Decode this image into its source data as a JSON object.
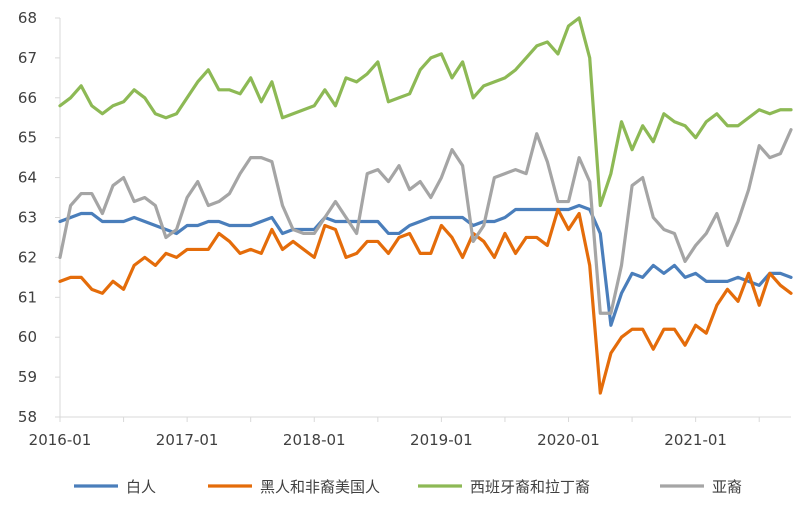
{
  "chart_data": {
    "type": "line",
    "title": "",
    "xlabel": "",
    "ylabel": "",
    "ylim": [
      58,
      68
    ],
    "yticks": [
      58,
      59,
      60,
      61,
      62,
      63,
      64,
      65,
      66,
      67,
      68
    ],
    "x_start": "2016-01",
    "x_count": 70,
    "xtick_labels": [
      {
        "label": "2016-01",
        "index": 0
      },
      {
        "label": "2017-01",
        "index": 12
      },
      {
        "label": "2018-01",
        "index": 24
      },
      {
        "label": "2019-01",
        "index": 36
      },
      {
        "label": "2020-01",
        "index": 48
      },
      {
        "label": "2021-01",
        "index": 60
      }
    ],
    "grid": false,
    "legend_position": "bottom",
    "series": [
      {
        "name": "白人",
        "color": "#4a7ebb",
        "values": [
          62.9,
          63.0,
          63.1,
          63.1,
          62.9,
          62.9,
          62.9,
          63.0,
          62.9,
          62.8,
          62.7,
          62.6,
          62.8,
          62.8,
          62.9,
          62.9,
          62.8,
          62.8,
          62.8,
          62.9,
          63.0,
          62.6,
          62.7,
          62.7,
          62.7,
          63.0,
          62.9,
          62.9,
          62.9,
          62.9,
          62.9,
          62.6,
          62.6,
          62.8,
          62.9,
          63.0,
          63.0,
          63.0,
          63.0,
          62.8,
          62.9,
          62.9,
          63.0,
          63.2,
          63.2,
          63.2,
          63.2,
          63.2,
          63.2,
          63.3,
          63.2,
          62.6,
          60.3,
          61.1,
          61.6,
          61.5,
          61.8,
          61.6,
          61.8,
          61.5,
          61.6,
          61.4,
          61.4,
          61.4,
          61.5,
          61.4,
          61.3,
          61.6,
          61.6,
          61.5
        ]
      },
      {
        "name": "黑人和非裔美国人",
        "color": "#e46c0a",
        "values": [
          61.4,
          61.5,
          61.5,
          61.2,
          61.1,
          61.4,
          61.2,
          61.8,
          62.0,
          61.8,
          62.1,
          62.0,
          62.2,
          62.2,
          62.2,
          62.6,
          62.4,
          62.1,
          62.2,
          62.1,
          62.7,
          62.2,
          62.4,
          62.2,
          62.0,
          62.8,
          62.7,
          62.0,
          62.1,
          62.4,
          62.4,
          62.1,
          62.5,
          62.6,
          62.1,
          62.1,
          62.8,
          62.5,
          62.0,
          62.6,
          62.4,
          62.0,
          62.6,
          62.1,
          62.5,
          62.5,
          62.3,
          63.2,
          62.7,
          63.1,
          61.8,
          58.6,
          59.6,
          60.0,
          60.2,
          60.2,
          59.7,
          60.2,
          60.2,
          59.8,
          60.3,
          60.1,
          60.8,
          61.2,
          60.9,
          61.6,
          60.8,
          61.6,
          61.3,
          61.1
        ]
      },
      {
        "name": "西班牙裔和拉丁裔",
        "color": "#8db955",
        "values": [
          65.8,
          66.0,
          66.3,
          65.8,
          65.6,
          65.8,
          65.9,
          66.2,
          66.0,
          65.6,
          65.5,
          65.6,
          66.0,
          66.4,
          66.7,
          66.2,
          66.2,
          66.1,
          66.5,
          65.9,
          66.4,
          65.5,
          65.6,
          65.7,
          65.8,
          66.2,
          65.8,
          66.5,
          66.4,
          66.6,
          66.9,
          65.9,
          66.0,
          66.1,
          66.7,
          67.0,
          67.1,
          66.5,
          66.9,
          66.0,
          66.3,
          66.4,
          66.5,
          66.7,
          67.0,
          67.3,
          67.4,
          67.1,
          67.8,
          68.0,
          67.0,
          63.3,
          64.1,
          65.4,
          64.7,
          65.3,
          64.9,
          65.6,
          65.4,
          65.3,
          65.0,
          65.4,
          65.6,
          65.3,
          65.3,
          65.5,
          65.7,
          65.6,
          65.7,
          65.7
        ]
      },
      {
        "name": "亚裔",
        "color": "#a5a5a5",
        "values": [
          62.0,
          63.3,
          63.6,
          63.6,
          63.1,
          63.8,
          64.0,
          63.4,
          63.5,
          63.3,
          62.5,
          62.7,
          63.5,
          63.9,
          63.3,
          63.4,
          63.6,
          64.1,
          64.5,
          64.5,
          64.4,
          63.3,
          62.7,
          62.6,
          62.6,
          63.0,
          63.4,
          63.0,
          62.6,
          64.1,
          64.2,
          63.9,
          64.3,
          63.7,
          63.9,
          63.5,
          64.0,
          64.7,
          64.3,
          62.4,
          62.8,
          64.0,
          64.1,
          64.2,
          64.1,
          65.1,
          64.4,
          63.4,
          63.4,
          64.5,
          63.9,
          60.6,
          60.6,
          61.8,
          63.8,
          64.0,
          63.0,
          62.7,
          62.6,
          61.9,
          62.3,
          62.6,
          63.1,
          62.3,
          62.9,
          63.7,
          64.8,
          64.5,
          64.6,
          65.2
        ]
      }
    ]
  }
}
